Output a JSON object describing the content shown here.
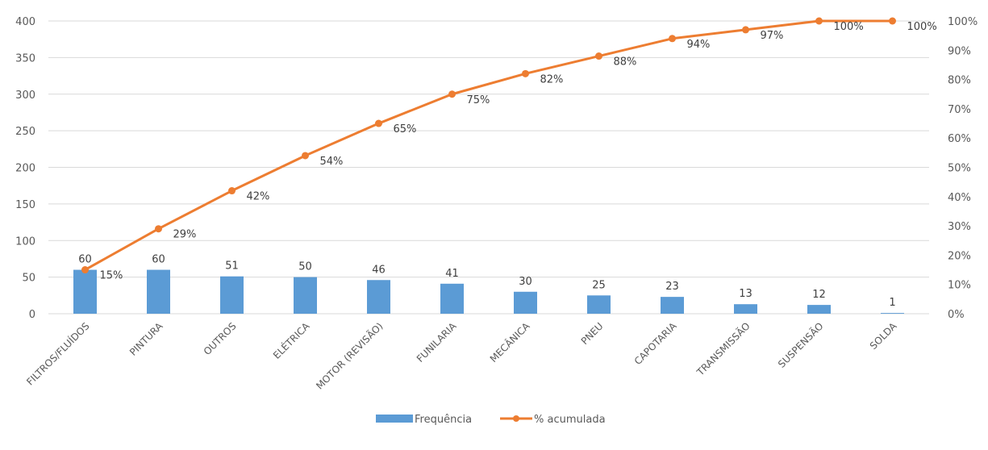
{
  "chart_data": {
    "type": "bar",
    "categories": [
      "FILTROS/FLUÍDOS",
      "PINTURA",
      "OUTROS",
      "ELÉTRICA",
      "MOTOR (REVISÃO)",
      "FUNILARIA",
      "MECÂNICA",
      "PNEU",
      "CAPOTARIA",
      "TRANSMISSÃO",
      "SUSPENSÃO",
      "SOLDA"
    ],
    "series": [
      {
        "name": "Frequência",
        "type": "bar",
        "axis": "left",
        "color": "#5b9bd5",
        "values": [
          60,
          60,
          51,
          50,
          46,
          41,
          30,
          25,
          23,
          13,
          12,
          1
        ],
        "labels": [
          "60",
          "60",
          "51",
          "50",
          "46",
          "41",
          "30",
          "25",
          "23",
          "13",
          "12",
          "1"
        ]
      },
      {
        "name": "% acumulada",
        "type": "line",
        "axis": "right",
        "color": "#ed7d31",
        "values": [
          15,
          29,
          42,
          54,
          65,
          75,
          82,
          88,
          94,
          97,
          100,
          100
        ],
        "labels": [
          "15%",
          "29%",
          "42%",
          "54%",
          "65%",
          "75%",
          "82%",
          "88%",
          "94%",
          "97%",
          "100%",
          "100%"
        ]
      }
    ],
    "ylim": [
      0,
      400
    ],
    "y_ticks": [
      "0",
      "50",
      "100",
      "150",
      "200",
      "250",
      "300",
      "350",
      "400"
    ],
    "y2lim": [
      0,
      100
    ],
    "y2_ticks": [
      "0%",
      "10%",
      "20%",
      "30%",
      "40%",
      "50%",
      "60%",
      "70%",
      "80%",
      "90%",
      "100%"
    ],
    "grid": true,
    "legend_position": "bottom"
  }
}
